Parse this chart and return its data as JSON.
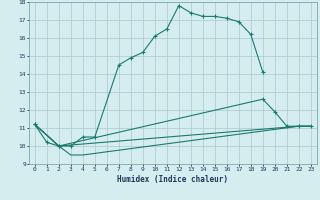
{
  "xlabel": "Humidex (Indice chaleur)",
  "bg_color": "#d6edf0",
  "grid_color": "#a8c8d0",
  "line_color": "#1a7a6e",
  "xlim": [
    -0.5,
    23.5
  ],
  "ylim": [
    9,
    18
  ],
  "xticks": [
    0,
    1,
    2,
    3,
    4,
    5,
    6,
    7,
    8,
    9,
    10,
    11,
    12,
    13,
    14,
    15,
    16,
    17,
    18,
    19,
    20,
    21,
    22,
    23
  ],
  "yticks": [
    9,
    10,
    11,
    12,
    13,
    14,
    15,
    16,
    17,
    18
  ],
  "curve1_x": [
    0,
    1,
    2,
    3,
    4,
    5,
    7,
    8,
    9,
    10,
    11,
    12,
    13,
    14,
    15,
    16,
    17,
    18,
    19
  ],
  "curve1_y": [
    11.2,
    10.2,
    10.0,
    10.0,
    10.5,
    10.5,
    14.5,
    14.9,
    15.2,
    16.1,
    16.5,
    17.8,
    17.4,
    17.2,
    17.2,
    17.1,
    16.9,
    16.2,
    14.1
  ],
  "curve2_x": [
    0,
    2,
    19,
    20,
    21,
    22,
    23
  ],
  "curve2_y": [
    11.2,
    10.0,
    12.6,
    11.9,
    11.1,
    11.1,
    11.1
  ],
  "curve3_x": [
    0,
    2,
    22,
    23
  ],
  "curve3_y": [
    11.2,
    10.0,
    11.1,
    11.1
  ],
  "curve4_x": [
    0,
    2,
    3,
    4,
    22,
    23
  ],
  "curve4_y": [
    11.2,
    10.0,
    9.5,
    9.5,
    11.1,
    11.1
  ]
}
